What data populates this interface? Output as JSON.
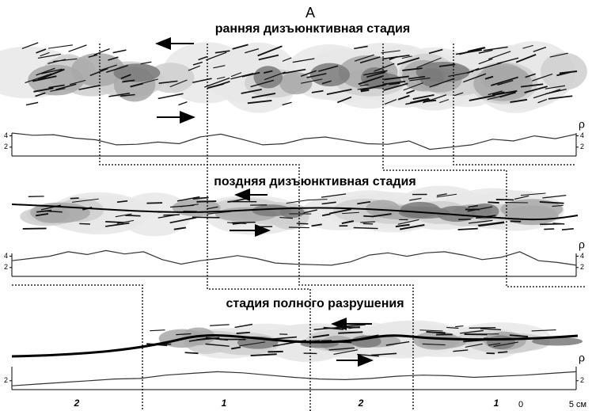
{
  "header": "А",
  "panels": [
    {
      "title": "ранняя   дизъюнктивная   стадия",
      "rho": "ρ",
      "profile": {
        "ylim": [
          0,
          4.5
        ],
        "yticks": [
          2,
          4
        ],
        "values": [
          4.5,
          4.1,
          4.2,
          3.6,
          3.3,
          2.4,
          2.5,
          2.9,
          2.6,
          3.8,
          4.3,
          3.4,
          2.4,
          2.6,
          3.5,
          3.8,
          3.2,
          2.6,
          2.5,
          3.1,
          1.6,
          2.0,
          2.4,
          3.4,
          3.1,
          4.0,
          3.5,
          4.3
        ]
      }
    },
    {
      "title": "поздняя  дизъюнктивная   стадия",
      "rho": "ρ",
      "profile": {
        "ylim": [
          0,
          4.5
        ],
        "yticks": [
          2,
          4
        ],
        "values": [
          3.2,
          3.6,
          4.0,
          4.8,
          4.3,
          5.0,
          4.4,
          4.8,
          3.4,
          2.6,
          3.2,
          3.6,
          4.1,
          3.6,
          2.8,
          2.6,
          2.5,
          2.4,
          3.0,
          4.2,
          4.6,
          4.0,
          4.6,
          4.8,
          4.2,
          3.4,
          3.8,
          4.8,
          3.2,
          2.9,
          2.4
        ]
      }
    },
    {
      "title": "стадия   полного   разрушения",
      "rho": "ρ",
      "profile": {
        "ylim": [
          0,
          4.5
        ],
        "yticks": [
          2
        ],
        "values": [
          1.1,
          1.4,
          1.7,
          2.0,
          2.3,
          2.4,
          3.0,
          3.3,
          3.6,
          3.4,
          3.0,
          2.6,
          2.3,
          2.2,
          2.4,
          2.8,
          3.0,
          2.9,
          2.6,
          2.8,
          3.0,
          3.3,
          3.6
        ]
      }
    }
  ],
  "zones": [
    "2",
    "1",
    "2",
    "1"
  ],
  "scale": [
    "0",
    "5 см"
  ]
}
